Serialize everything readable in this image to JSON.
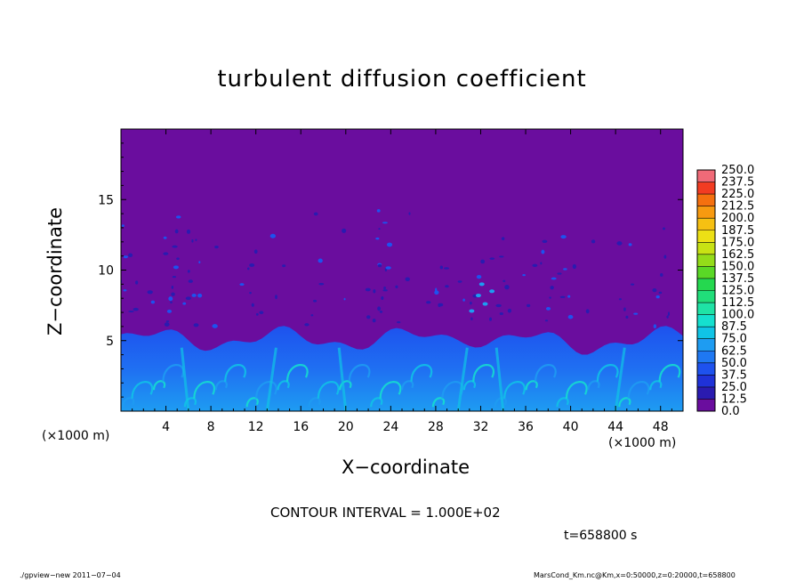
{
  "chart_data": {
    "type": "heatmap",
    "title": "turbulent diffusion coefficient",
    "xlabel": "X−coordinate",
    "ylabel": "Z−coordinate",
    "x_unit_left": "(×1000 m)",
    "x_unit_right": "(×1000 m)",
    "xlim": [
      0,
      50
    ],
    "ylim": [
      0,
      20
    ],
    "x_ticks": [
      4,
      8,
      12,
      16,
      20,
      24,
      28,
      32,
      36,
      40,
      44,
      48
    ],
    "y_ticks": [
      5,
      10,
      15
    ],
    "colorbar": {
      "levels": [
        "0.0",
        "12.5",
        "25.0",
        "37.5",
        "50.0",
        "62.5",
        "75.0",
        "87.5",
        "100.0",
        "112.5",
        "125.0",
        "137.5",
        "150.0",
        "162.5",
        "175.0",
        "187.5",
        "200.0",
        "212.5",
        "225.0",
        "237.5",
        "250.0"
      ],
      "colors": [
        "#6a0d9e",
        "#2a1bb0",
        "#1f32d8",
        "#1e52ee",
        "#1f78f2",
        "#1e9cf2",
        "#10c4e6",
        "#15e0cf",
        "#1fe3a6",
        "#20de7a",
        "#25d84f",
        "#5ad826",
        "#94dc19",
        "#c8e214",
        "#ece015",
        "#f6c012",
        "#f79a10",
        "#f5700f",
        "#f23c22",
        "#f06a78"
      ]
    },
    "background_value": "0.0",
    "background_color": "#6a0d9e",
    "boundary_layer_top_approx": 5.5
  },
  "contour_interval": "CONTOUR INTERVAL = 1.000E+02",
  "time_label": "t=658800 s",
  "footer_left": "./gpview−new   2011−07−04",
  "footer_right": "MarsCond_Km.nc@Km,x=0:50000,z=0:20000,t=658800"
}
